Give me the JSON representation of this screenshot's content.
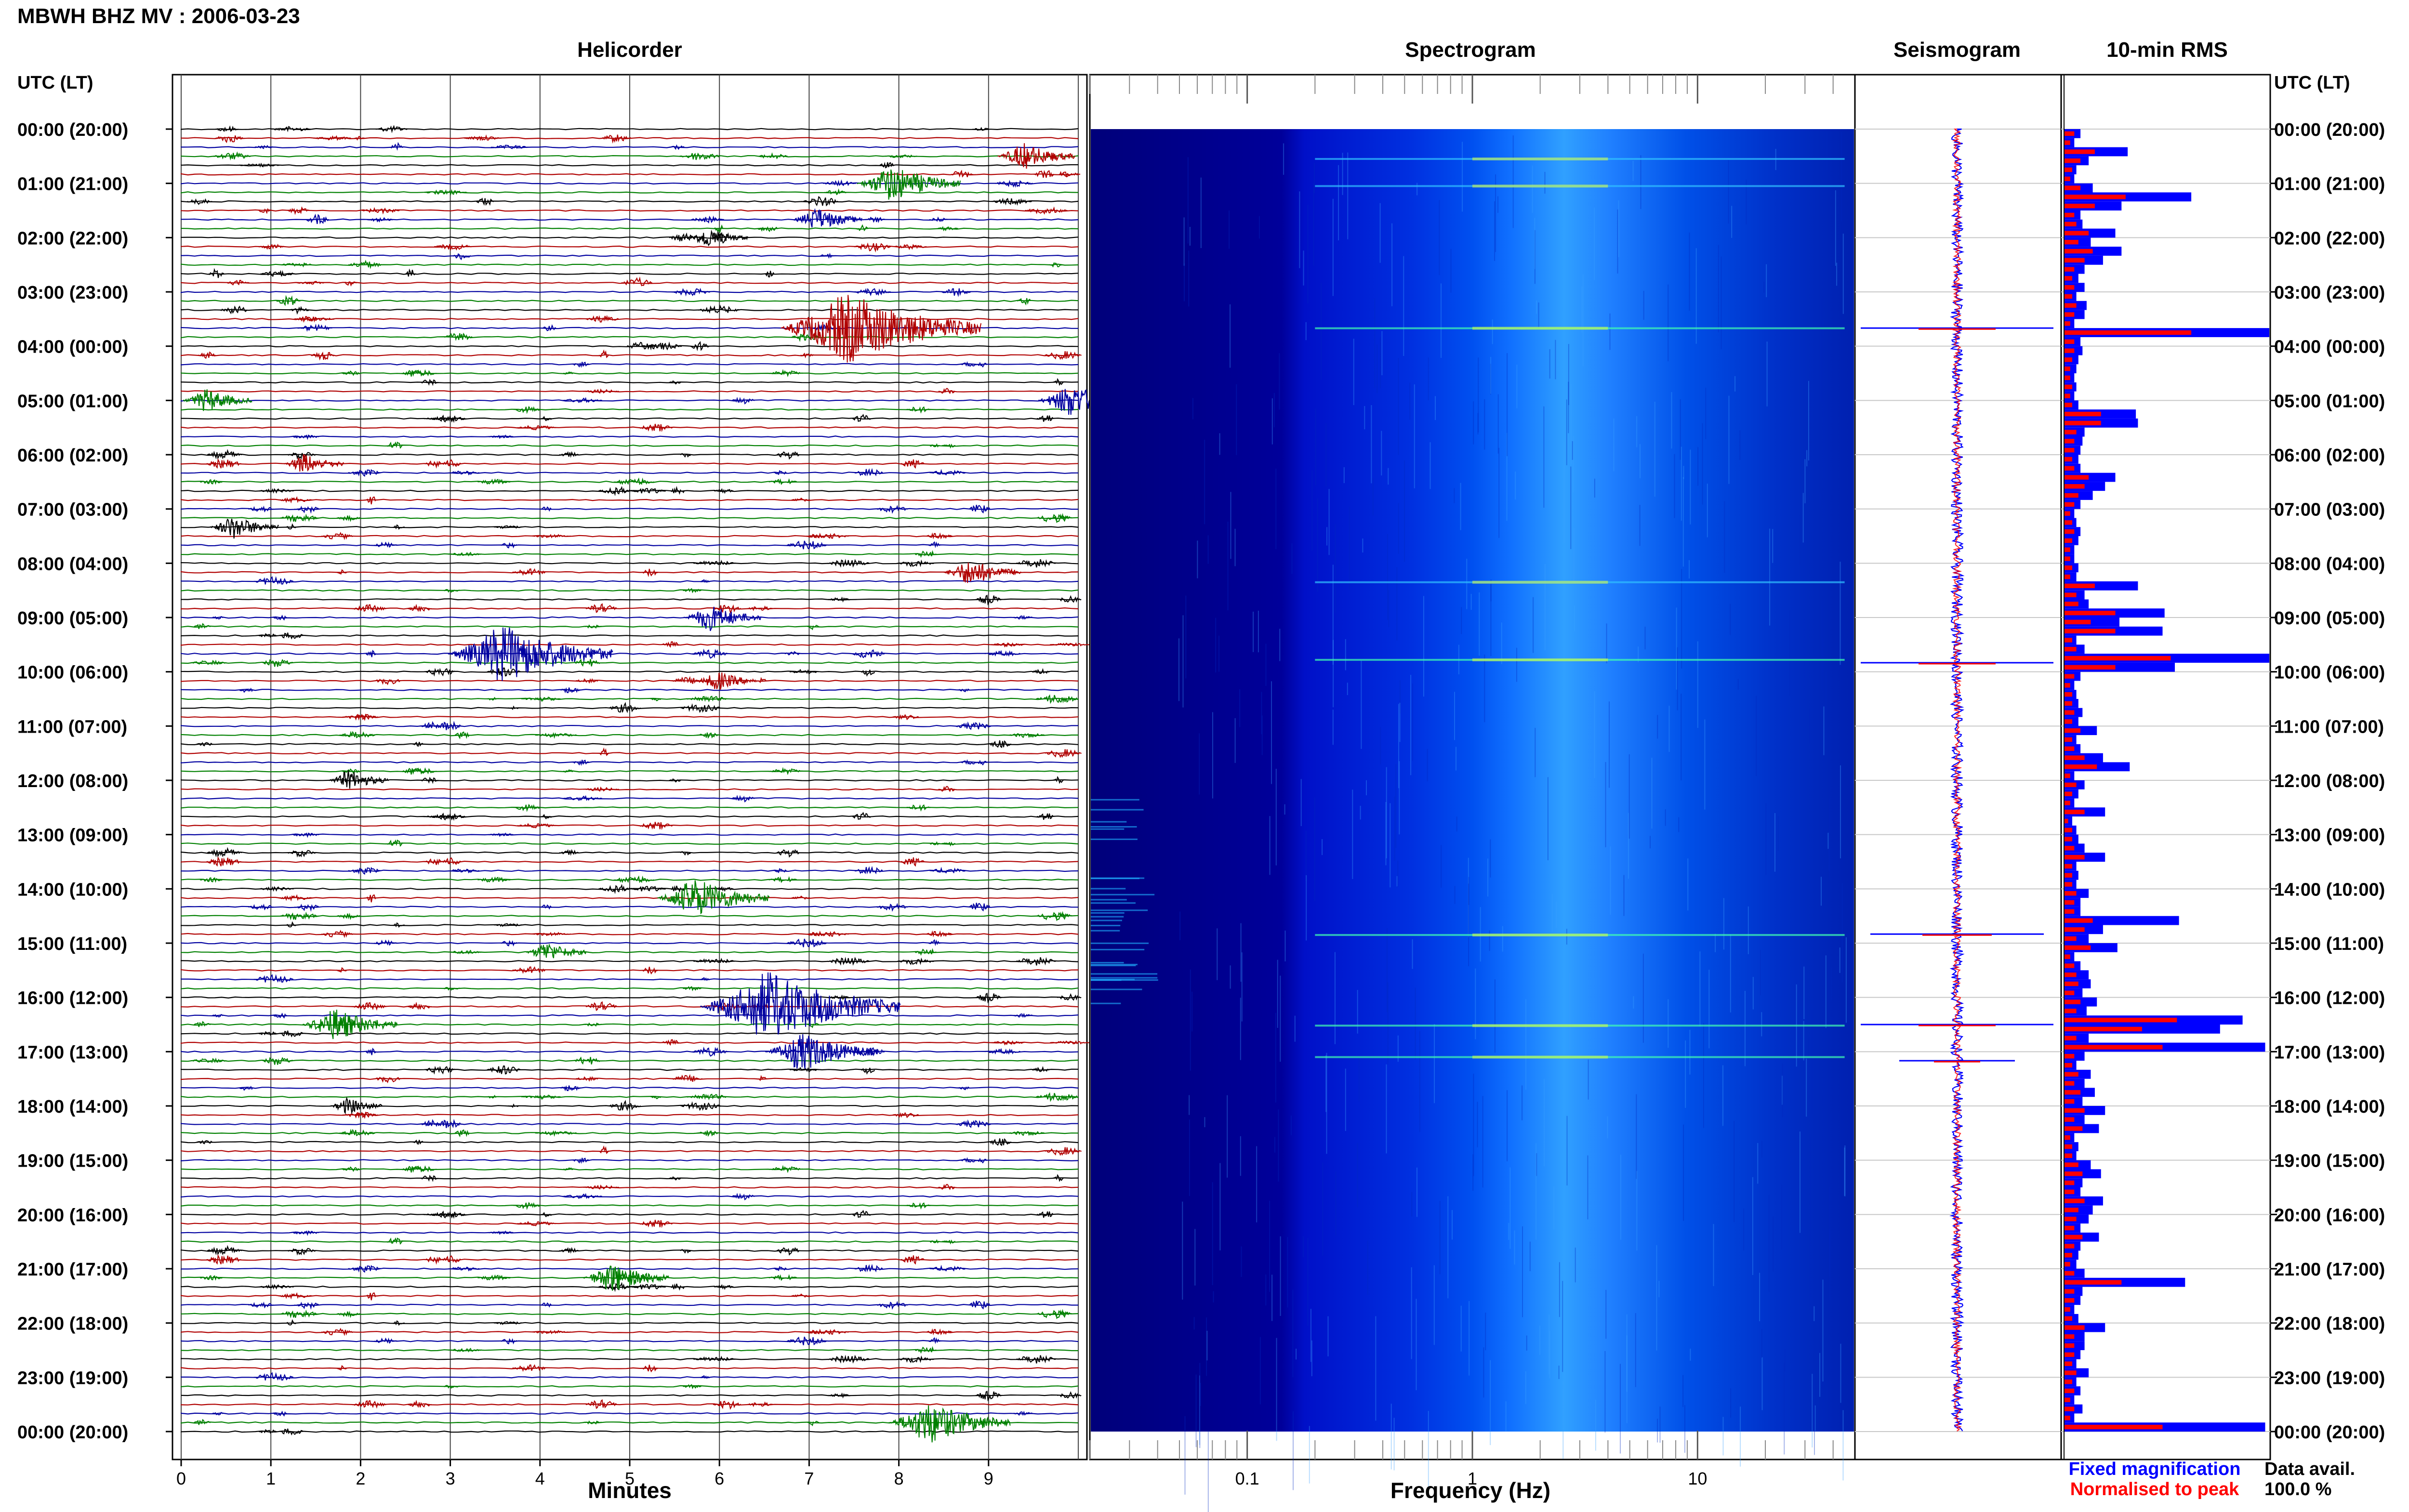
{
  "page_title": "MBWH BHZ MV : 2006-03-23",
  "time_axis_label": "UTC (LT)",
  "panels": {
    "helicorder": {
      "title": "Helicorder",
      "xlabel": "Minutes",
      "x_ticks": [
        "0",
        "1",
        "2",
        "3",
        "4",
        "5",
        "6",
        "7",
        "8",
        "9"
      ]
    },
    "spectrogram": {
      "title": "Spectrogram",
      "xlabel": "Frequency (Hz)",
      "x_ticks": [
        "0.1",
        "1",
        "10"
      ]
    },
    "seismogram": {
      "title": "Seismogram"
    },
    "rms": {
      "title": "10-min RMS"
    }
  },
  "time_labels": [
    "00:00 (20:00)",
    "01:00 (21:00)",
    "02:00 (22:00)",
    "03:00 (23:00)",
    "04:00 (00:00)",
    "05:00 (01:00)",
    "06:00 (02:00)",
    "07:00 (03:00)",
    "08:00 (04:00)",
    "09:00 (05:00)",
    "10:00 (06:00)",
    "11:00 (07:00)",
    "12:00 (08:00)",
    "13:00 (09:00)",
    "14:00 (10:00)",
    "15:00 (11:00)",
    "16:00 (12:00)",
    "17:00 (13:00)",
    "18:00 (14:00)",
    "19:00 (15:00)",
    "20:00 (16:00)",
    "21:00 (17:00)",
    "22:00 (18:00)",
    "23:00 (19:00)",
    "00:00 (20:00)"
  ],
  "legend": {
    "fixed": "Fixed magnification",
    "normalised": "Normalised to peak",
    "fixed_color": "#0000ff",
    "normalised_color": "#ff0000"
  },
  "data_avail": {
    "label": "Data avail.",
    "value": "100.0 %"
  },
  "colors": {
    "trace": [
      "#000000",
      "#b00000",
      "#0000a0",
      "#008000"
    ],
    "rms_fixed": "#0000ff",
    "rms_normalised": "#ff0000"
  },
  "chart_data": [
    {
      "type": "line",
      "panel": "helicorder",
      "title": "Helicorder",
      "xlabel": "Minutes",
      "xlim": [
        0,
        10
      ],
      "line_interval_minutes": 10,
      "lines": 144,
      "color_cycle": [
        "black",
        "red",
        "blue",
        "green"
      ],
      "events": [
        {
          "start_min": 9.3,
          "time": "00:30",
          "color": "red",
          "amplitude": 0.6
        },
        {
          "start_min": 7.8,
          "time": "01:00",
          "color": "green",
          "amplitude": 0.9
        },
        {
          "start_min": 7.0,
          "time": "01:40",
          "color": "blue",
          "amplitude": 0.5
        },
        {
          "start_min": 5.8,
          "time": "02:00",
          "color": "black",
          "amplitude": 0.4
        },
        {
          "start_min": 7.2,
          "time": "03:40",
          "color": "red",
          "amplitude": 2.0
        },
        {
          "start_min": 9.8,
          "time": "05:00",
          "color": "blue",
          "amplitude": 0.8
        },
        {
          "start_min": 0.2,
          "time": "05:00",
          "color": "green",
          "amplitude": 0.5
        },
        {
          "start_min": 1.3,
          "time": "06:10",
          "color": "red",
          "amplitude": 0.4
        },
        {
          "start_min": 0.5,
          "time": "07:20",
          "color": "black",
          "amplitude": 0.5
        },
        {
          "start_min": 8.7,
          "time": "08:10",
          "color": "red",
          "amplitude": 0.6
        },
        {
          "start_min": 5.8,
          "time": "09:00",
          "color": "blue",
          "amplitude": 0.6
        },
        {
          "start_min": 3.4,
          "time": "09:40",
          "color": "blue",
          "amplitude": 1.6
        },
        {
          "start_min": 5.9,
          "time": "10:10",
          "color": "red",
          "amplitude": 0.4
        },
        {
          "start_min": 1.8,
          "time": "12:00",
          "color": "black",
          "amplitude": 0.4
        },
        {
          "start_min": 5.6,
          "time": "14:10",
          "color": "green",
          "amplitude": 1.0
        },
        {
          "start_min": 4.0,
          "time": "15:10",
          "color": "green",
          "amplitude": 0.4
        },
        {
          "start_min": 6.3,
          "time": "16:10",
          "color": "blue",
          "amplitude": 2.0
        },
        {
          "start_min": 1.6,
          "time": "16:30",
          "color": "green",
          "amplitude": 0.8
        },
        {
          "start_min": 6.8,
          "time": "17:00",
          "color": "blue",
          "amplitude": 1.0
        },
        {
          "start_min": 1.8,
          "time": "18:00",
          "color": "black",
          "amplitude": 0.3
        },
        {
          "start_min": 4.7,
          "time": "21:10",
          "color": "green",
          "amplitude": 0.7
        },
        {
          "start_min": 8.2,
          "time": "23:50",
          "color": "green",
          "amplitude": 1.1
        }
      ]
    },
    {
      "type": "heatmap",
      "panel": "spectrogram",
      "title": "Spectrogram",
      "xlabel": "Frequency (Hz)",
      "x_scale": "log",
      "xlim": [
        0.02,
        50
      ],
      "colormap": "jet"
    },
    {
      "type": "line",
      "panel": "seismogram",
      "title": "Seismogram",
      "series": [
        {
          "name": "Fixed magnification",
          "color": "blue"
        },
        {
          "name": "Normalised to peak",
          "color": "red"
        }
      ],
      "spikes": [
        {
          "time": "03:40",
          "amplitude": 1.0
        },
        {
          "time": "09:50",
          "amplitude": 1.0
        },
        {
          "time": "14:50",
          "amplitude": 0.9
        },
        {
          "time": "16:30",
          "amplitude": 1.0
        },
        {
          "time": "17:10",
          "amplitude": 0.6
        }
      ]
    },
    {
      "type": "bar",
      "panel": "rms",
      "title": "10-min RMS",
      "orientation": "horizontal",
      "interval_minutes": 10,
      "series": [
        {
          "name": "Fixed magnification",
          "color": "blue",
          "values": [
            0.08,
            0.05,
            0.31,
            0.12,
            0.06,
            0.05,
            0.14,
            0.62,
            0.28,
            0.08,
            0.09,
            0.25,
            0.13,
            0.28,
            0.19,
            0.1,
            0.07,
            0.1,
            0.06,
            0.11,
            0.1,
            0.05,
            1.0,
            0.08,
            0.09,
            0.07,
            0.06,
            0.05,
            0.06,
            0.05,
            0.07,
            0.35,
            0.36,
            0.1,
            0.09,
            0.08,
            0.07,
            0.08,
            0.25,
            0.2,
            0.14,
            0.08,
            0.05,
            0.06,
            0.08,
            0.07,
            0.05,
            0.05,
            0.07,
            0.06,
            0.36,
            0.1,
            0.12,
            0.49,
            0.27,
            0.48,
            0.06,
            0.1,
            1.0,
            0.54,
            0.08,
            0.05,
            0.06,
            0.07,
            0.09,
            0.07,
            0.16,
            0.06,
            0.08,
            0.19,
            0.32,
            0.05,
            0.1,
            0.07,
            0.05,
            0.2,
            0.04,
            0.06,
            0.07,
            0.1,
            0.2,
            0.06,
            0.07,
            0.06,
            0.12,
            0.08,
            0.08,
            0.56,
            0.19,
            0.12,
            0.26,
            0.05,
            0.08,
            0.12,
            0.13,
            0.09,
            0.16,
            0.11,
            0.87,
            0.76,
            0.12,
            0.98,
            0.1,
            0.06,
            0.13,
            0.1,
            0.15,
            0.09,
            0.2,
            0.1,
            0.17,
            0.05,
            0.07,
            0.06,
            0.13,
            0.18,
            0.09,
            0.08,
            0.19,
            0.14,
            0.12,
            0.08,
            0.17,
            0.08,
            0.07,
            0.06,
            0.1,
            0.59,
            0.09,
            0.08,
            0.05,
            0.07,
            0.2,
            0.1,
            0.1,
            0.08,
            0.06,
            0.12,
            0.06,
            0.08,
            0.05,
            0.09,
            0.05,
            0.98
          ]
        },
        {
          "name": "Normalised to peak",
          "color": "red",
          "values": [
            0.05,
            0.03,
            0.15,
            0.08,
            0.04,
            0.03,
            0.08,
            0.3,
            0.15,
            0.05,
            0.06,
            0.12,
            0.07,
            0.14,
            0.1,
            0.05,
            0.04,
            0.05,
            0.04,
            0.06,
            0.05,
            0.03,
            0.62,
            0.05,
            0.05,
            0.04,
            0.03,
            0.03,
            0.04,
            0.03,
            0.04,
            0.18,
            0.18,
            0.06,
            0.05,
            0.05,
            0.04,
            0.05,
            0.12,
            0.1,
            0.07,
            0.05,
            0.03,
            0.04,
            0.05,
            0.04,
            0.03,
            0.03,
            0.04,
            0.03,
            0.15,
            0.06,
            0.07,
            0.25,
            0.13,
            0.25,
            0.04,
            0.06,
            0.52,
            0.25,
            0.05,
            0.03,
            0.04,
            0.04,
            0.05,
            0.04,
            0.08,
            0.04,
            0.05,
            0.1,
            0.16,
            0.03,
            0.06,
            0.04,
            0.03,
            0.1,
            0.02,
            0.04,
            0.04,
            0.05,
            0.1,
            0.04,
            0.04,
            0.04,
            0.06,
            0.05,
            0.05,
            0.14,
            0.1,
            0.06,
            0.13,
            0.03,
            0.05,
            0.06,
            0.07,
            0.05,
            0.08,
            0.06,
            0.55,
            0.38,
            0.06,
            0.48,
            0.05,
            0.04,
            0.07,
            0.05,
            0.08,
            0.05,
            0.1,
            0.05,
            0.09,
            0.03,
            0.04,
            0.04,
            0.07,
            0.09,
            0.05,
            0.05,
            0.1,
            0.07,
            0.06,
            0.05,
            0.09,
            0.05,
            0.04,
            0.03,
            0.05,
            0.28,
            0.05,
            0.05,
            0.03,
            0.04,
            0.1,
            0.05,
            0.05,
            0.05,
            0.04,
            0.06,
            0.04,
            0.05,
            0.03,
            0.05,
            0.03,
            0.48
          ]
        }
      ]
    }
  ]
}
